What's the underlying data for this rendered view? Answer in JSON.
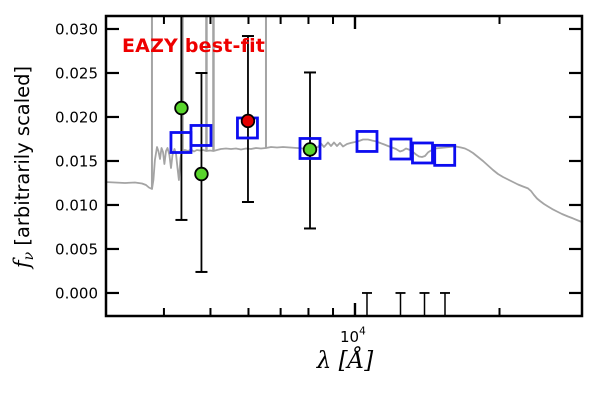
{
  "chart_data": {
    "type": "line+scatter",
    "description": "Galaxy SED: gray model spectrum with emission-line spikes, blue open squares = model photometry, green/red filled circles with error bars = observed photometry, short capped bars near zero = undetected bands",
    "annotation": {
      "text": "EAZY best-fit",
      "color": "#ee0000"
    },
    "axes": {
      "xlabel": {
        "symbol": "λ",
        "unit": " [Å]",
        "full": "λ [Å]"
      },
      "ylabel": {
        "symbol": "f",
        "subscript": "ν",
        "rest": " [arbitrarily scaled]",
        "full": "f_ν [arbitrarily scaled]"
      },
      "x_scale": "log",
      "x_range_angstrom": [
        3015,
        29850
      ],
      "y_range_flux": [
        -0.00273,
        0.03159
      ],
      "x_major_ticks_angstrom": [
        10000
      ],
      "x_major_tick_label": {
        "base": "10",
        "exponent": "4"
      },
      "x_minor_ticks_angstrom": [
        4000,
        5000,
        6000,
        7000,
        8000,
        9000,
        20000
      ],
      "y_ticks_flux": [
        0.03,
        0.025,
        0.02,
        0.015,
        0.01,
        0.005,
        0.0
      ],
      "y_tick_labels": [
        "0.030",
        "0.025",
        "0.020",
        "0.015",
        "0.010",
        "0.005",
        "0.000"
      ],
      "grid": false,
      "legend": false
    },
    "colors": {
      "spectrum_gray": "#a4a4a4",
      "model_blue": "#0d0df0",
      "observed_green": "#59d52c",
      "observed_red": "#e30000",
      "axis_black": "#000000"
    },
    "series": {
      "model_spectrum": {
        "name": "EAZY best-fit model spectrum",
        "type": "line",
        "points_loglam_flux": [
          [
            3.4792,
            0.01261
          ],
          [
            3.5,
            0.01256
          ],
          [
            3.5208,
            0.0125
          ],
          [
            3.5417,
            0.01256
          ],
          [
            3.5563,
            0.01244
          ],
          [
            3.5646,
            0.01227
          ],
          [
            3.5708,
            0.01199
          ],
          [
            3.5771,
            0.01182
          ],
          [
            3.5802,
            0.01284
          ],
          [
            3.5833,
            0.01511
          ],
          [
            3.5875,
            0.01659
          ],
          [
            3.5906,
            0.01614
          ],
          [
            3.5938,
            0.01523
          ],
          [
            3.5969,
            0.01648
          ],
          [
            3.6,
            0.01602
          ],
          [
            3.6031,
            0.01466
          ],
          [
            3.6063,
            0.01614
          ],
          [
            3.6094,
            0.01648
          ],
          [
            3.6135,
            0.01568
          ],
          [
            3.6167,
            0.0142
          ],
          [
            3.6198,
            0.01568
          ],
          [
            3.624,
            0.01636
          ],
          [
            3.6271,
            0.0158
          ],
          [
            3.6302,
            0.0142
          ],
          [
            3.6333,
            0.01284
          ],
          [
            3.6365,
            0.01534
          ],
          [
            3.6396,
            0.01614
          ],
          [
            3.6458,
            0.01625
          ],
          [
            3.6521,
            0.01614
          ],
          [
            3.6583,
            0.01631
          ],
          [
            3.6646,
            0.01608
          ],
          [
            3.6708,
            0.01625
          ],
          [
            3.6771,
            0.01619
          ],
          [
            3.6833,
            0.01625
          ],
          [
            3.6906,
            0.01614
          ],
          [
            3.6979,
            0.01619
          ],
          [
            3.7052,
            0.01614
          ],
          [
            3.7125,
            0.01625
          ],
          [
            3.7208,
            0.01636
          ],
          [
            3.7313,
            0.01642
          ],
          [
            3.7417,
            0.01636
          ],
          [
            3.7521,
            0.01642
          ],
          [
            3.7625,
            0.01631
          ],
          [
            3.7729,
            0.01642
          ],
          [
            3.7833,
            0.01636
          ],
          [
            3.7938,
            0.01648
          ],
          [
            3.8042,
            0.01642
          ],
          [
            3.8146,
            0.01648
          ],
          [
            3.825,
            0.01659
          ],
          [
            3.8375,
            0.01653
          ],
          [
            3.85,
            0.01659
          ],
          [
            3.8646,
            0.01653
          ],
          [
            3.8792,
            0.01648
          ],
          [
            3.8938,
            0.01642
          ],
          [
            3.9063,
            0.01636
          ],
          [
            3.9167,
            0.01648
          ],
          [
            3.9229,
            0.01659
          ],
          [
            3.9292,
            0.01699
          ],
          [
            3.9354,
            0.01659
          ],
          [
            3.9438,
            0.0171
          ],
          [
            3.95,
            0.0167
          ],
          [
            3.9563,
            0.0171
          ],
          [
            3.9625,
            0.0167
          ],
          [
            3.9688,
            0.01705
          ],
          [
            3.975,
            0.01665
          ],
          [
            3.9833,
            0.01693
          ],
          [
            3.9917,
            0.01705
          ],
          [
            4.0,
            0.01716
          ],
          [
            4.0083,
            0.01727
          ],
          [
            4.0167,
            0.01744
          ],
          [
            4.0271,
            0.01744
          ],
          [
            4.0354,
            0.01733
          ],
          [
            4.0438,
            0.01722
          ],
          [
            4.0521,
            0.01705
          ],
          [
            4.0604,
            0.01688
          ],
          [
            4.0688,
            0.0167
          ],
          [
            4.0771,
            0.01653
          ],
          [
            4.0854,
            0.01636
          ],
          [
            4.0938,
            0.01608
          ],
          [
            4.1,
            0.01619
          ],
          [
            4.1063,
            0.01642
          ],
          [
            4.1146,
            0.01625
          ],
          [
            4.1208,
            0.01602
          ],
          [
            4.1271,
            0.01574
          ],
          [
            4.1333,
            0.01551
          ],
          [
            4.1396,
            0.01545
          ],
          [
            4.1458,
            0.01557
          ],
          [
            4.1521,
            0.01597
          ],
          [
            4.1583,
            0.01619
          ],
          [
            4.1667,
            0.01642
          ],
          [
            4.1771,
            0.01648
          ],
          [
            4.1875,
            0.01653
          ],
          [
            4.1979,
            0.01659
          ],
          [
            4.2104,
            0.01665
          ],
          [
            4.2208,
            0.01653
          ],
          [
            4.2292,
            0.01642
          ],
          [
            4.2375,
            0.01619
          ],
          [
            4.2458,
            0.01591
          ],
          [
            4.2563,
            0.01545
          ],
          [
            4.2667,
            0.015
          ],
          [
            4.2771,
            0.01449
          ],
          [
            4.2875,
            0.01398
          ],
          [
            4.2979,
            0.01352
          ],
          [
            4.3083,
            0.01318
          ],
          [
            4.3188,
            0.0129
          ],
          [
            4.3292,
            0.01261
          ],
          [
            4.3396,
            0.01233
          ],
          [
            4.35,
            0.0121
          ],
          [
            4.3604,
            0.01188
          ],
          [
            4.3667,
            0.01159
          ],
          [
            4.3729,
            0.01114
          ],
          [
            4.3792,
            0.01074
          ],
          [
            4.3854,
            0.01045
          ],
          [
            4.3938,
            0.01011
          ],
          [
            4.4021,
            0.00983
          ],
          [
            4.4104,
            0.00955
          ],
          [
            4.4208,
            0.00926
          ],
          [
            4.4313,
            0.00898
          ],
          [
            4.4438,
            0.00869
          ],
          [
            4.4542,
            0.00847
          ],
          [
            4.4646,
            0.00824
          ],
          [
            4.475,
            0.00801
          ]
        ]
      },
      "emission_spikes": {
        "name": "emission lines (clipped at top frame)",
        "type": "vlines",
        "lines": [
          {
            "loglam": 3.5771,
            "lambda_angstrom": 3758,
            "flux_from": 0.01182,
            "width": 2.0
          },
          {
            "loglam": 3.6396,
            "lambda_angstrom": 4361,
            "flux_from": 0.01614,
            "width": 3.5
          },
          {
            "loglam": 3.6906,
            "lambda_angstrom": 4903,
            "flux_from": 0.01614,
            "width": 2.5
          },
          {
            "loglam": 3.7052,
            "lambda_angstrom": 5072,
            "flux_from": 0.01614,
            "width": 2.5
          },
          {
            "loglam": 3.8146,
            "lambda_angstrom": 6525,
            "flux_from": 0.01648,
            "width": 2.0
          }
        ]
      },
      "model_photometry": {
        "name": "model photometry",
        "marker": "open-square",
        "points": [
          {
            "loglam": 3.6375,
            "lambda_angstrom": 4340,
            "flux": 0.0171
          },
          {
            "loglam": 3.6792,
            "lambda_angstrom": 4776,
            "flux": 0.0179
          },
          {
            "loglam": 3.776,
            "lambda_angstrom": 5970,
            "flux": 0.01875
          },
          {
            "loglam": 3.9063,
            "lambda_angstrom": 8060,
            "flux": 0.01642
          },
          {
            "loglam": 4.025,
            "lambda_angstrom": 10590,
            "flux": 0.01722
          },
          {
            "loglam": 4.0958,
            "lambda_angstrom": 12470,
            "flux": 0.01636
          },
          {
            "loglam": 4.1406,
            "lambda_angstrom": 13820,
            "flux": 0.01591
          },
          {
            "loglam": 4.1869,
            "lambda_angstrom": 15380,
            "flux": 0.01564
          }
        ]
      },
      "observed_photometry": {
        "name": "observed photometry",
        "marker": "filled-circle",
        "points": [
          {
            "loglam": 3.6385,
            "lambda_angstrom": 4350,
            "flux": 0.02102,
            "err_lo_flux": 0.0083,
            "err_hi_flux": 0.0337,
            "hi_clipped": true,
            "color_key": "observed_green"
          },
          {
            "loglam": 3.6802,
            "lambda_angstrom": 4787,
            "flux": 0.01352,
            "err_lo_flux": 0.00239,
            "err_hi_flux": 0.025,
            "hi_clipped": false,
            "color_key": "observed_green"
          },
          {
            "loglam": 3.9063,
            "lambda_angstrom": 8060,
            "flux": 0.01631,
            "err_lo_flux": 0.00733,
            "err_hi_flux": 0.02506,
            "hi_clipped": false,
            "color_key": "observed_green"
          },
          {
            "loglam": 3.7771,
            "lambda_angstrom": 5984,
            "flux": 0.01955,
            "err_lo_flux": 0.01034,
            "err_hi_flux": 0.0292,
            "hi_clipped": false,
            "color_key": "observed_red"
          }
        ]
      },
      "upper_limits": {
        "name": "undetected bands (error bars reaching zero, point below axis)",
        "type": "capped-bars",
        "cap_flux": 0.0,
        "loglam": [
          4.025,
          4.0948,
          4.1448,
          4.1875
        ],
        "lambda_angstrom": [
          10590,
          12440,
          13960,
          15400
        ]
      }
    }
  }
}
